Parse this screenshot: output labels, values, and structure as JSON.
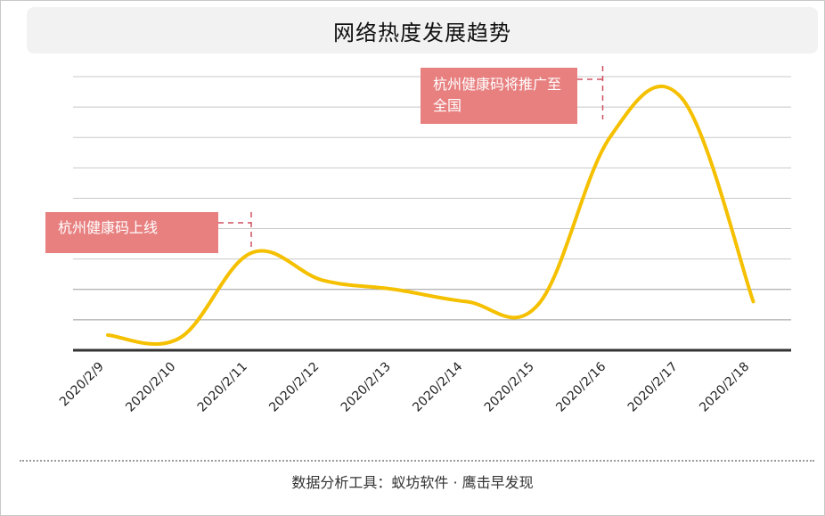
{
  "title": "网络热度发展趋势",
  "footer": "数据分析工具：蚁坊软件 · 鹰击早发现",
  "annotations": [
    {
      "text": "杭州健康码上线"
    },
    {
      "text": "杭州健康码将推广至全国"
    }
  ],
  "colors": {
    "line": "#f5c000",
    "annotation": "#e88080",
    "grid": "#b0b0b0",
    "axis": "#333333"
  },
  "chart_data": {
    "type": "line",
    "title": "网络热度发展趋势",
    "xlabel": "",
    "ylabel": "",
    "categories": [
      "2020/2/9",
      "2020/2/10",
      "2020/2/11",
      "2020/2/12",
      "2020/2/13",
      "2020/2/14",
      "2020/2/15",
      "2020/2/16",
      "2020/2/17",
      "2020/2/18"
    ],
    "series": [
      {
        "values": [
          5,
          4,
          32,
          23,
          20,
          16,
          15,
          70,
          83,
          16
        ]
      }
    ],
    "ylim": [
      0,
      90
    ],
    "grid": true,
    "y_tick_labels_shown": false
  }
}
